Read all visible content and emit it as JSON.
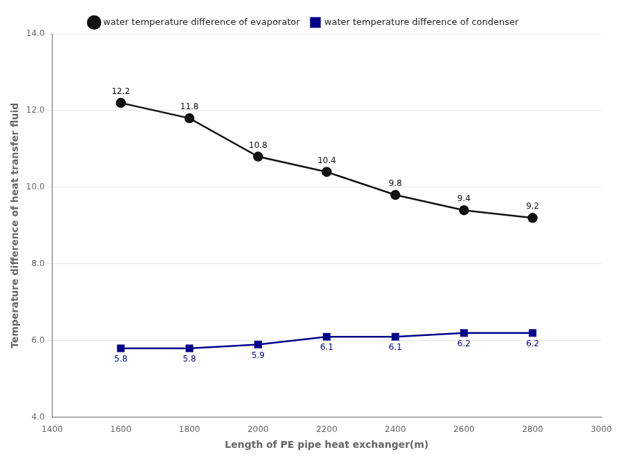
{
  "chart_data": {
    "type": "line",
    "xlabel": "Length of PE pipe heat exchanger(m)",
    "ylabel": "Temperature difference of heat transfer fluid",
    "x": [
      1600,
      1800,
      2000,
      2200,
      2400,
      2600,
      2800
    ],
    "series": [
      {
        "name": "water temperature difference of evaporator",
        "color": "#111111",
        "marker": "circle",
        "values": [
          12.2,
          11.8,
          10.8,
          10.4,
          9.8,
          9.4,
          9.2
        ]
      },
      {
        "name": "water temperature difference of condenser",
        "color": "#00008b",
        "marker": "square",
        "values": [
          5.8,
          5.8,
          5.9,
          6.1,
          6.1,
          6.2,
          6.2
        ]
      }
    ],
    "xlim": [
      1400,
      3000
    ],
    "xticks": [
      1400,
      1600,
      1800,
      2000,
      2200,
      2400,
      2600,
      2800,
      3000
    ],
    "ylim": [
      4.0,
      14.0
    ],
    "yticks": [
      {
        "value": 4.0,
        "label": "4.0"
      },
      {
        "value": 6.0,
        "label": "6.0"
      },
      {
        "value": 8.0,
        "label": "8.0"
      },
      {
        "value": 10.0,
        "label": "10.0"
      },
      {
        "value": 12.0,
        "label": "12.0"
      },
      {
        "value": 14.0,
        "label": "14.0"
      }
    ],
    "grid": "y",
    "legend": "top",
    "data_labels": true
  }
}
